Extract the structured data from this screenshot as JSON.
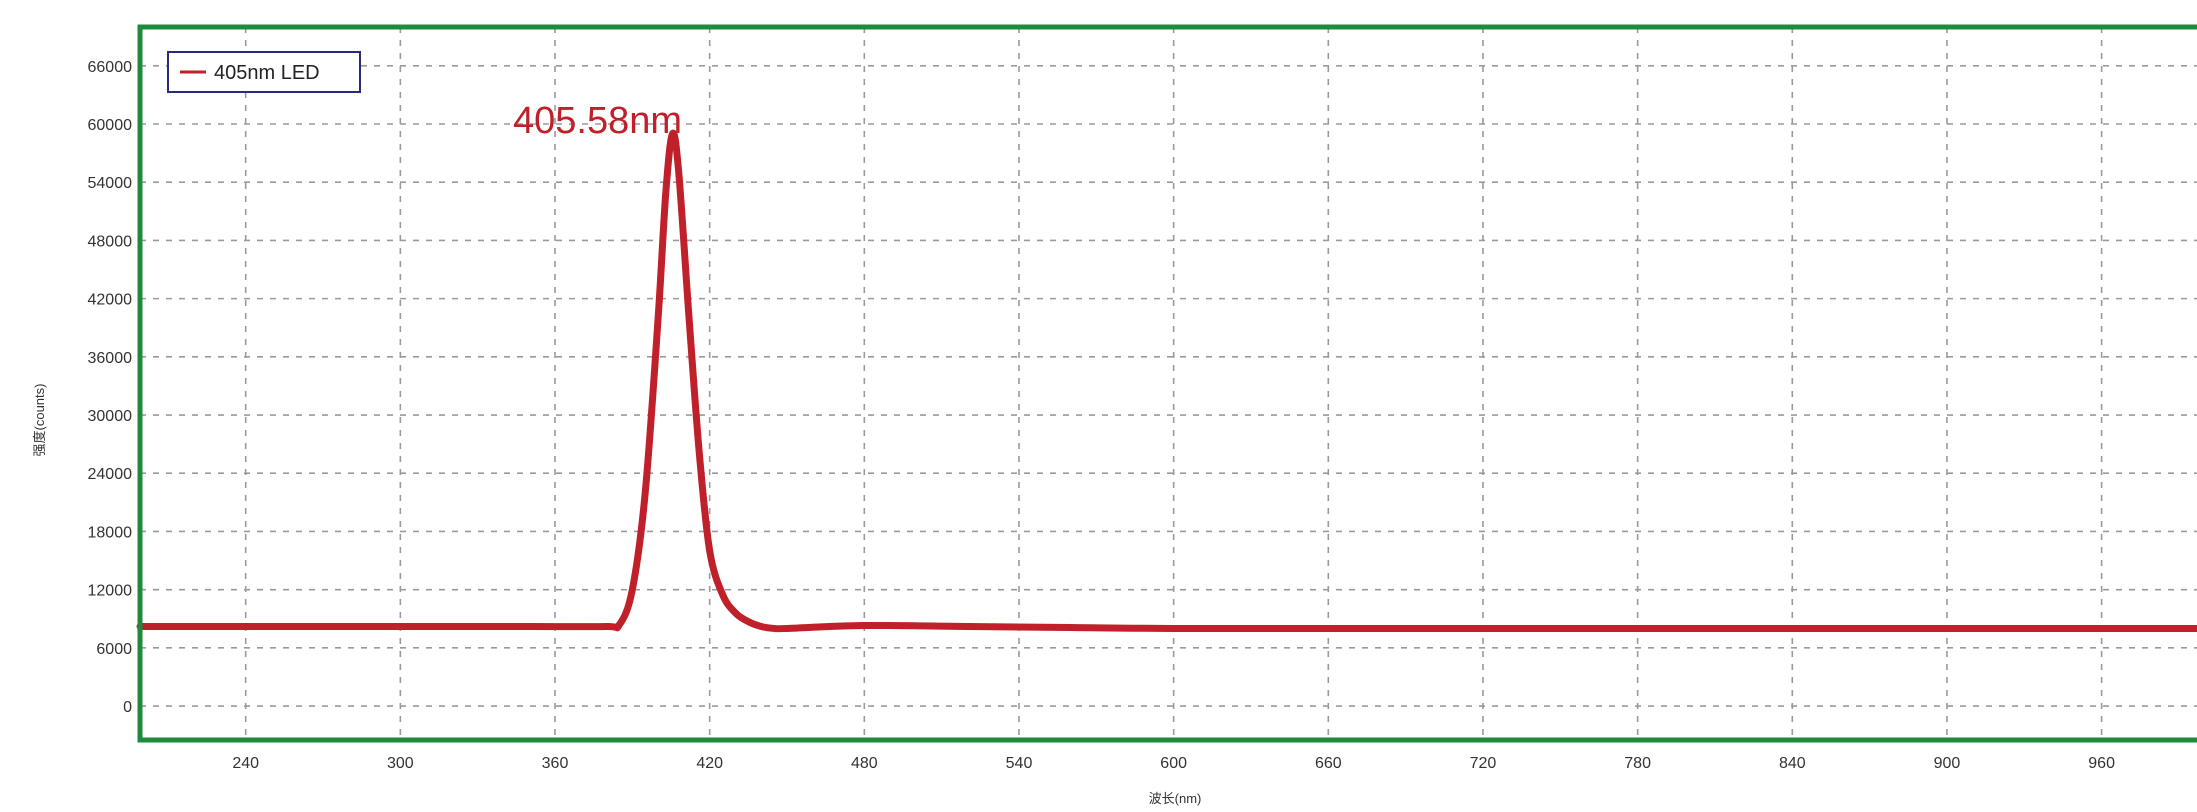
{
  "chart_data": {
    "type": "line",
    "xlabel": "波长(nm)",
    "ylabel": "强度(counts)",
    "xlim": [
      199,
      997
    ],
    "ylim": [
      -3500,
      70000
    ],
    "x_ticks": [
      240,
      300,
      360,
      420,
      480,
      540,
      600,
      660,
      720,
      780,
      840,
      900,
      960
    ],
    "y_ticks": [
      0,
      6000,
      12000,
      18000,
      24000,
      30000,
      36000,
      42000,
      48000,
      54000,
      60000,
      66000
    ],
    "grid": true,
    "legend": {
      "position": "top-left",
      "entries": [
        "405nm LED"
      ]
    },
    "annotation": {
      "text": "405.58nm",
      "x": 405.58,
      "y": 59000
    },
    "colors": {
      "series": "#c0202a",
      "frame": "#1e8a3c",
      "grid": "#9a9a9a",
      "text": "#333333"
    },
    "series": [
      {
        "name": "405nm LED",
        "x": [
          199,
          250,
          300,
          350,
          380,
          385,
          390,
          395,
          400,
          403,
          405.58,
          408,
          412,
          416,
          420,
          425,
          430,
          435,
          440,
          445,
          450,
          480,
          520,
          560,
          600,
          700,
          800,
          900,
          997
        ],
        "y": [
          8200,
          8200,
          8200,
          8200,
          8200,
          8400,
          12000,
          22000,
          40000,
          53000,
          59000,
          55000,
          40000,
          26000,
          16000,
          11500,
          9600,
          8700,
          8200,
          8000,
          8000,
          8300,
          8200,
          8100,
          8000,
          8000,
          8000,
          8000,
          8000
        ]
      }
    ]
  }
}
